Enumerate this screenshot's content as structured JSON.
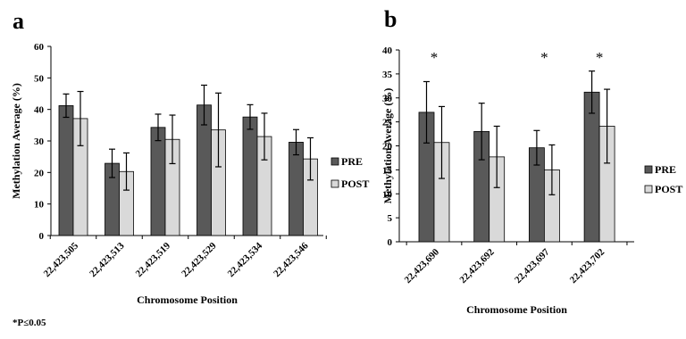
{
  "footnote": "*P≤0.05",
  "colors": {
    "pre": "#595959",
    "post": "#d9d9d9",
    "outline": "#000000"
  },
  "chart_data": [
    {
      "type": "bar",
      "panel_label": "a",
      "title": "",
      "xlabel": "Chromosome Position",
      "ylabel": "Methylation Average (%)",
      "ylim": [
        0,
        60
      ],
      "yticks": [
        0,
        10,
        20,
        30,
        40,
        50,
        60
      ],
      "grid": false,
      "legend_position": "right",
      "categories": [
        "22,423,505",
        "22,423,513",
        "22,423,519",
        "22,423,529",
        "22,423,534",
        "22,423,546"
      ],
      "series": [
        {
          "name": "PRE",
          "color": "#595959",
          "values": [
            41.2,
            22.9,
            34.3,
            41.4,
            37.6,
            29.6
          ],
          "errors": [
            3.7,
            4.5,
            4.2,
            6.3,
            3.9,
            4.0
          ]
        },
        {
          "name": "POST",
          "color": "#d9d9d9",
          "values": [
            37.1,
            20.3,
            30.5,
            33.5,
            31.4,
            24.3
          ],
          "errors": [
            8.6,
            5.9,
            7.7,
            11.7,
            7.4,
            6.7
          ]
        }
      ],
      "significant": [
        false,
        false,
        false,
        false,
        false,
        false
      ],
      "significance_marker": "*"
    },
    {
      "type": "bar",
      "panel_label": "b",
      "title": "",
      "xlabel": "Chromosome Position",
      "ylabel": "Methylation Average (%)",
      "ylim": [
        0,
        40
      ],
      "yticks": [
        0,
        5,
        10,
        15,
        20,
        25,
        30,
        35,
        40
      ],
      "grid": false,
      "legend_position": "right",
      "categories": [
        "22,423,690",
        "22,423,692",
        "22,423,697",
        "22,423,702"
      ],
      "series": [
        {
          "name": "PRE",
          "color": "#595959",
          "values": [
            27.0,
            23.0,
            19.6,
            31.2
          ],
          "errors": [
            6.4,
            5.9,
            3.6,
            4.4
          ]
        },
        {
          "name": "POST",
          "color": "#d9d9d9",
          "values": [
            20.7,
            17.7,
            15.0,
            24.1
          ],
          "errors": [
            7.5,
            6.4,
            5.2,
            7.7
          ]
        }
      ],
      "significant": [
        true,
        false,
        true,
        true
      ],
      "significance_marker": "*"
    }
  ]
}
